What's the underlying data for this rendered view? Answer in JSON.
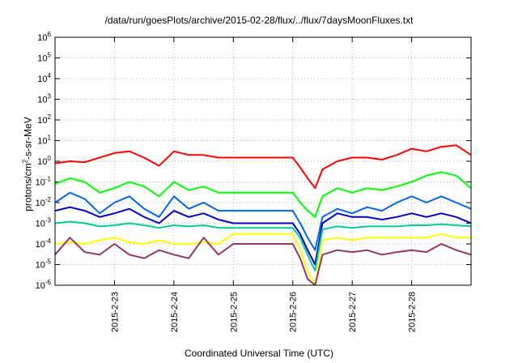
{
  "chart_data": {
    "type": "line",
    "title": "/data/run/goesPlots/archive/2015-02-28/flux/../flux/7daysMoonFluxes.txt",
    "xlabel": "Coordinated Universal Time (UTC)",
    "ylabel": {
      "pre": "protons/cm",
      "sup": "2",
      "post": "-s-sr-MeV"
    },
    "y_scale": "log",
    "ylim": [
      1e-06,
      1000000.0
    ],
    "y_ticks": [
      {
        "base": "10",
        "exp": "-6"
      },
      {
        "base": "10",
        "exp": "-5"
      },
      {
        "base": "10",
        "exp": "-4"
      },
      {
        "base": "10",
        "exp": "-3"
      },
      {
        "base": "10",
        "exp": "-2"
      },
      {
        "base": "10",
        "exp": "-1"
      },
      {
        "base": "10",
        "exp": "0"
      },
      {
        "base": "10",
        "exp": "1"
      },
      {
        "base": "10",
        "exp": "2"
      },
      {
        "base": "10",
        "exp": "3"
      },
      {
        "base": "10",
        "exp": "4"
      },
      {
        "base": "10",
        "exp": "5"
      },
      {
        "base": "10",
        "exp": "6"
      }
    ],
    "x_tick_labels": [
      "2015-2-23",
      "2015-2-24",
      "2015-2-25",
      "2015-2-26",
      "2015-2-27",
      "2015-2-28"
    ],
    "xlim": [
      "2015-02-22T00:00",
      "2015-02-29T00:00"
    ],
    "grid": true,
    "series": [
      {
        "color": "#ff0000",
        "x": [
          "2015-02-22T00:00",
          "2015-02-22T06:00",
          "2015-02-22T12:00",
          "2015-02-22T18:00",
          "2015-02-23T00:00",
          "2015-02-23T06:00",
          "2015-02-23T12:00",
          "2015-02-23T18:00",
          "2015-02-24T00:00",
          "2015-02-24T06:00",
          "2015-02-24T12:00",
          "2015-02-24T18:00",
          "2015-02-25T00:00",
          "2015-02-25T06:00",
          "2015-02-25T12:00",
          "2015-02-25T18:00",
          "2015-02-26T00:00",
          "2015-02-26T03:00",
          "2015-02-26T06:00",
          "2015-02-26T09:00",
          "2015-02-26T12:00",
          "2015-02-26T18:00",
          "2015-02-27T00:00",
          "2015-02-27T06:00",
          "2015-02-27T12:00",
          "2015-02-27T18:00",
          "2015-02-28T00:00",
          "2015-02-28T06:00",
          "2015-02-28T12:00",
          "2015-02-28T18:00",
          "2015-02-29T00:00"
        ],
        "y": [
          0.8,
          1.0,
          0.9,
          1.5,
          2.5,
          3.0,
          1.5,
          0.6,
          3.0,
          2.0,
          2.0,
          1.5,
          1.5,
          1.5,
          1.5,
          1.5,
          1.5,
          0.5,
          0.15,
          0.05,
          0.4,
          1.0,
          1.5,
          1.5,
          1.2,
          2.0,
          4.0,
          3.0,
          5.0,
          6.0,
          2.0
        ]
      },
      {
        "color": "#00ff00",
        "x": [
          "2015-02-22T00:00",
          "2015-02-22T06:00",
          "2015-02-22T12:00",
          "2015-02-22T18:00",
          "2015-02-23T00:00",
          "2015-02-23T06:00",
          "2015-02-23T12:00",
          "2015-02-23T18:00",
          "2015-02-24T00:00",
          "2015-02-24T06:00",
          "2015-02-24T12:00",
          "2015-02-24T18:00",
          "2015-02-25T00:00",
          "2015-02-25T06:00",
          "2015-02-25T12:00",
          "2015-02-25T18:00",
          "2015-02-26T00:00",
          "2015-02-26T03:00",
          "2015-02-26T06:00",
          "2015-02-26T09:00",
          "2015-02-26T12:00",
          "2015-02-26T18:00",
          "2015-02-27T00:00",
          "2015-02-27T06:00",
          "2015-02-27T12:00",
          "2015-02-27T18:00",
          "2015-02-28T00:00",
          "2015-02-28T06:00",
          "2015-02-28T12:00",
          "2015-02-28T18:00",
          "2015-02-29T00:00"
        ],
        "y": [
          0.08,
          0.15,
          0.1,
          0.03,
          0.05,
          0.1,
          0.06,
          0.02,
          0.1,
          0.04,
          0.06,
          0.03,
          0.03,
          0.03,
          0.03,
          0.03,
          0.03,
          0.01,
          0.004,
          0.002,
          0.02,
          0.05,
          0.03,
          0.05,
          0.04,
          0.06,
          0.1,
          0.2,
          0.3,
          0.2,
          0.05
        ]
      },
      {
        "color": "#0066ee",
        "x": [
          "2015-02-22T00:00",
          "2015-02-22T06:00",
          "2015-02-22T12:00",
          "2015-02-22T18:00",
          "2015-02-23T00:00",
          "2015-02-23T06:00",
          "2015-02-23T12:00",
          "2015-02-23T18:00",
          "2015-02-24T00:00",
          "2015-02-24T06:00",
          "2015-02-24T12:00",
          "2015-02-24T18:00",
          "2015-02-25T00:00",
          "2015-02-25T06:00",
          "2015-02-25T12:00",
          "2015-02-25T18:00",
          "2015-02-26T00:00",
          "2015-02-26T03:00",
          "2015-02-26T06:00",
          "2015-02-26T09:00",
          "2015-02-26T12:00",
          "2015-02-26T18:00",
          "2015-02-27T00:00",
          "2015-02-27T06:00",
          "2015-02-27T12:00",
          "2015-02-27T18:00",
          "2015-02-28T00:00",
          "2015-02-28T06:00",
          "2015-02-28T12:00",
          "2015-02-28T18:00",
          "2015-02-29T00:00"
        ],
        "y": [
          0.01,
          0.03,
          0.015,
          0.003,
          0.01,
          0.02,
          0.005,
          0.002,
          0.02,
          0.005,
          0.01,
          0.004,
          0.004,
          0.004,
          0.004,
          0.004,
          0.004,
          0.001,
          0.0002,
          5e-05,
          0.002,
          0.005,
          0.003,
          0.006,
          0.004,
          0.01,
          0.02,
          0.01,
          0.02,
          0.01,
          0.005
        ]
      },
      {
        "color": "#0000cc",
        "x": [
          "2015-02-22T00:00",
          "2015-02-22T06:00",
          "2015-02-22T12:00",
          "2015-02-22T18:00",
          "2015-02-23T00:00",
          "2015-02-23T06:00",
          "2015-02-23T12:00",
          "2015-02-23T18:00",
          "2015-02-24T00:00",
          "2015-02-24T06:00",
          "2015-02-24T12:00",
          "2015-02-24T18:00",
          "2015-02-25T00:00",
          "2015-02-25T06:00",
          "2015-02-25T12:00",
          "2015-02-25T18:00",
          "2015-02-26T00:00",
          "2015-02-26T03:00",
          "2015-02-26T06:00",
          "2015-02-26T09:00",
          "2015-02-26T12:00",
          "2015-02-26T18:00",
          "2015-02-27T00:00",
          "2015-02-27T06:00",
          "2015-02-27T12:00",
          "2015-02-27T18:00",
          "2015-02-28T00:00",
          "2015-02-28T06:00",
          "2015-02-28T12:00",
          "2015-02-28T18:00",
          "2015-02-29T00:00"
        ],
        "y": [
          0.004,
          0.006,
          0.004,
          0.002,
          0.003,
          0.005,
          0.002,
          0.001,
          0.004,
          0.002,
          0.003,
          0.0015,
          0.001,
          0.001,
          0.001,
          0.001,
          0.001,
          0.0003,
          5e-05,
          1e-05,
          0.001,
          0.003,
          0.002,
          0.002,
          0.0015,
          0.002,
          0.003,
          0.002,
          0.003,
          0.002,
          0.001
        ]
      },
      {
        "color": "#00cc99",
        "x": [
          "2015-02-22T00:00",
          "2015-02-22T06:00",
          "2015-02-22T12:00",
          "2015-02-22T18:00",
          "2015-02-23T00:00",
          "2015-02-23T06:00",
          "2015-02-23T12:00",
          "2015-02-23T18:00",
          "2015-02-24T00:00",
          "2015-02-24T06:00",
          "2015-02-24T12:00",
          "2015-02-24T18:00",
          "2015-02-25T00:00",
          "2015-02-25T06:00",
          "2015-02-25T12:00",
          "2015-02-25T18:00",
          "2015-02-26T00:00",
          "2015-02-26T03:00",
          "2015-02-26T06:00",
          "2015-02-26T09:00",
          "2015-02-26T12:00",
          "2015-02-26T18:00",
          "2015-02-27T00:00",
          "2015-02-27T06:00",
          "2015-02-27T12:00",
          "2015-02-27T18:00",
          "2015-02-28T00:00",
          "2015-02-28T06:00",
          "2015-02-28T12:00",
          "2015-02-28T18:00",
          "2015-02-29T00:00"
        ],
        "y": [
          0.001,
          0.0012,
          0.001,
          0.0007,
          0.0008,
          0.001,
          0.0008,
          0.0006,
          0.0008,
          0.0007,
          0.0008,
          0.0006,
          0.0006,
          0.0006,
          0.0006,
          0.0006,
          0.0006,
          0.0002,
          3e-05,
          5e-06,
          0.0005,
          0.0007,
          0.0006,
          0.0007,
          0.0007,
          0.0007,
          0.0008,
          0.0008,
          0.0009,
          0.0008,
          0.0007
        ]
      },
      {
        "color": "#ffff00",
        "x": [
          "2015-02-22T00:00",
          "2015-02-22T06:00",
          "2015-02-22T12:00",
          "2015-02-22T18:00",
          "2015-02-23T00:00",
          "2015-02-23T06:00",
          "2015-02-23T12:00",
          "2015-02-23T18:00",
          "2015-02-24T00:00",
          "2015-02-24T06:00",
          "2015-02-24T12:00",
          "2015-02-24T18:00",
          "2015-02-25T00:00",
          "2015-02-25T06:00",
          "2015-02-25T12:00",
          "2015-02-25T18:00",
          "2015-02-26T00:00",
          "2015-02-26T03:00",
          "2015-02-26T06:00",
          "2015-02-26T09:00",
          "2015-02-26T12:00",
          "2015-02-26T18:00",
          "2015-02-27T00:00",
          "2015-02-27T06:00",
          "2015-02-27T12:00",
          "2015-02-27T18:00",
          "2015-02-28T00:00",
          "2015-02-28T06:00",
          "2015-02-28T12:00",
          "2015-02-28T18:00",
          "2015-02-29T00:00"
        ],
        "y": [
          0.0001,
          0.00012,
          0.0001,
          0.00015,
          0.0002,
          0.00012,
          0.0001,
          0.00015,
          0.0001,
          0.0001,
          0.00012,
          0.0001,
          0.0003,
          0.0003,
          0.0003,
          0.0003,
          0.0003,
          5e-05,
          5e-06,
          1e-06,
          0.00015,
          0.0002,
          0.00015,
          0.0002,
          0.0002,
          0.0002,
          0.0002,
          0.0002,
          0.0003,
          0.0002,
          0.0002
        ]
      },
      {
        "color": "#993366",
        "x": [
          "2015-02-22T00:00",
          "2015-02-22T06:00",
          "2015-02-22T12:00",
          "2015-02-22T18:00",
          "2015-02-23T00:00",
          "2015-02-23T06:00",
          "2015-02-23T12:00",
          "2015-02-23T18:00",
          "2015-02-24T00:00",
          "2015-02-24T06:00",
          "2015-02-24T12:00",
          "2015-02-24T18:00",
          "2015-02-25T00:00",
          "2015-02-25T06:00",
          "2015-02-25T12:00",
          "2015-02-25T18:00",
          "2015-02-26T00:00",
          "2015-02-26T03:00",
          "2015-02-26T06:00",
          "2015-02-26T09:00",
          "2015-02-26T12:00",
          "2015-02-26T18:00",
          "2015-02-27T00:00",
          "2015-02-27T06:00",
          "2015-02-27T12:00",
          "2015-02-27T18:00",
          "2015-02-28T00:00",
          "2015-02-28T06:00",
          "2015-02-28T12:00",
          "2015-02-28T18:00",
          "2015-02-29T00:00"
        ],
        "y": [
          3e-05,
          0.0002,
          4e-05,
          3e-05,
          0.0001,
          3e-05,
          2e-05,
          5e-05,
          3e-05,
          2e-05,
          0.0002,
          3e-05,
          0.0001,
          0.0001,
          0.0001,
          0.0001,
          0.0001,
          2e-05,
          2e-06,
          1e-06,
          3e-05,
          5e-05,
          4e-05,
          5e-05,
          3e-05,
          4e-05,
          5e-05,
          4e-05,
          0.0001,
          5e-05,
          3e-05
        ]
      }
    ]
  }
}
